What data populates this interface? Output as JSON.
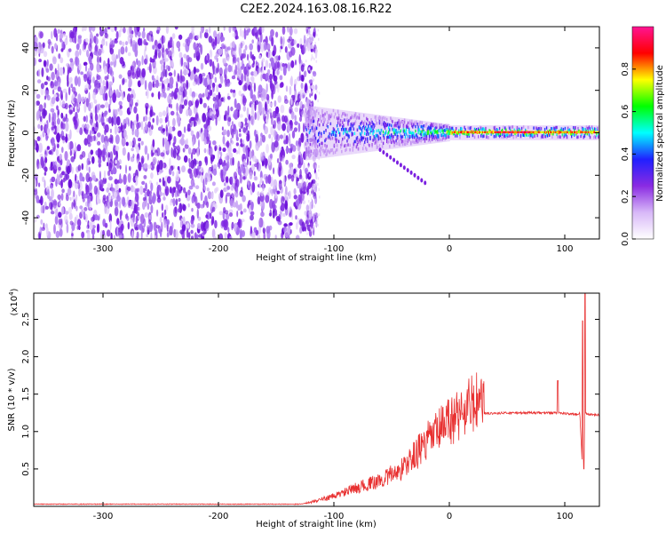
{
  "title": "C2E2.2024.163.08.16.R22",
  "chart_data": [
    {
      "type": "heatmap",
      "xlabel": "Height of straight line (km)",
      "ylabel": "Frequency (Hz)",
      "xlim": [
        -360,
        130
      ],
      "ylim": [
        -50,
        50
      ],
      "x_ticks": [
        -300,
        -200,
        -100,
        0,
        100
      ],
      "y_ticks": [
        -40,
        -20,
        0,
        20,
        40
      ],
      "colorbar": {
        "label": "Normalized spectral amplitude",
        "range": [
          0,
          1
        ],
        "ticks": [
          0.0,
          0.2,
          0.4,
          0.6,
          0.8
        ],
        "tick_labels": [
          "0.0",
          "0.2",
          "0.4",
          "0.6",
          "0.8"
        ],
        "colormap": [
          "#ffffff",
          "#d8b8f8",
          "#8a2be2",
          "#2020ff",
          "#00ffff",
          "#00ff00",
          "#ffff00",
          "#ff0000",
          "#ff1493"
        ]
      },
      "features": {
        "noise_region_x": [
          -360,
          -125
        ],
        "noise_amplitude": 0.3,
        "signal_center_hz": 0,
        "signal_start_x": -125,
        "signal_strong_x": [
          0,
          130
        ],
        "signal_strong_amplitude": 0.8
      }
    },
    {
      "type": "line",
      "xlabel": "Height of straight line (km)",
      "ylabel": "SNR (10 * v/v)",
      "y_multiplier_label": "(x10",
      "y_multiplier_exp": "4",
      "xlim": [
        -360,
        130
      ],
      "ylim": [
        0,
        2.85
      ],
      "x_ticks": [
        -300,
        -200,
        -100,
        0,
        100
      ],
      "y_ticks": [
        0.5,
        1.0,
        1.5,
        2.0,
        2.5
      ],
      "y_tick_labels": [
        "0.5",
        "1.0",
        "1.5",
        "2.0",
        "2.5"
      ],
      "color": "#e83030",
      "series": [
        {
          "x": [
            -360,
            -300,
            -200,
            -130,
            -120,
            -100,
            -80,
            -60,
            -40,
            -20,
            0,
            20,
            30,
            50,
            80,
            94,
            100,
            110,
            113,
            115,
            118,
            120,
            130
          ],
          "y": [
            0.03,
            0.03,
            0.03,
            0.03,
            0.05,
            0.12,
            0.22,
            0.3,
            0.45,
            0.75,
            1.0,
            1.2,
            1.24,
            1.25,
            1.25,
            1.25,
            1.24,
            1.23,
            1.25,
            0.6,
            1.25,
            1.23,
            1.22
          ]
        }
      ]
    }
  ]
}
